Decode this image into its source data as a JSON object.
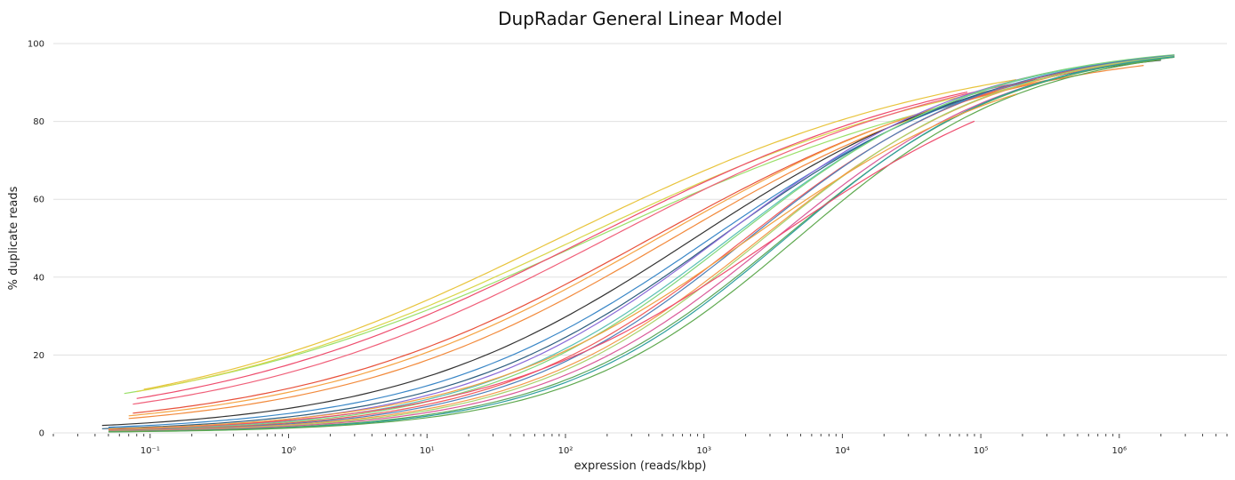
{
  "chart_data": {
    "type": "line",
    "title": "DupRadar General Linear Model",
    "xlabel": "expression (reads/kbp)",
    "ylabel": "% duplicate reads",
    "x_scale": "log",
    "xlim": [
      0.02,
      6000000
    ],
    "ylim": [
      0,
      100
    ],
    "x_ticks": [
      0.1,
      1,
      10,
      100,
      1000,
      10000,
      100000,
      1000000
    ],
    "x_tick_labels": [
      "10⁻¹",
      "10⁰",
      "10¹",
      "10²",
      "10³",
      "10⁴",
      "10⁵",
      "10⁶"
    ],
    "y_ticks": [
      0,
      20,
      40,
      60,
      80,
      100
    ],
    "y_tick_labels": [
      "0",
      "20",
      "40",
      "60",
      "80",
      "100"
    ],
    "grid": "horizontal",
    "legend": "none",
    "curve_model": "percent = 100 / (1 + exp(-(intercept + slope * ln(x))))",
    "series": [
      {
        "color": "#9be06a",
        "intercept": -1.42,
        "slope": 0.28,
        "x_range": [
          0.065,
          65000
        ]
      },
      {
        "color": "#e8c43c",
        "intercept": -1.35,
        "slope": 0.3,
        "x_range": [
          0.09,
          180000
        ]
      },
      {
        "color": "#d9d64a",
        "intercept": -1.4,
        "slope": 0.29,
        "x_range": [
          0.08,
          120000
        ]
      },
      {
        "color": "#ee4d6e",
        "intercept": -1.55,
        "slope": 0.31,
        "x_range": [
          0.08,
          80000
        ]
      },
      {
        "color": "#f0607a",
        "intercept": -1.7,
        "slope": 0.32,
        "x_range": [
          0.075,
          250000
        ]
      },
      {
        "color": "#e8503a",
        "intercept": -2.05,
        "slope": 0.34,
        "x_range": [
          0.075,
          400000
        ]
      },
      {
        "color": "#f5a443",
        "intercept": -2.15,
        "slope": 0.35,
        "x_range": [
          0.07,
          300000
        ]
      },
      {
        "color": "#f28a3c",
        "intercept": -2.3,
        "slope": 0.36,
        "x_range": [
          0.07,
          1500000
        ]
      },
      {
        "color": "#333333",
        "intercept": -2.7,
        "slope": 0.4,
        "x_range": [
          0.045,
          2000000
        ]
      },
      {
        "color": "#3a87c7",
        "intercept": -2.95,
        "slope": 0.42,
        "x_range": [
          0.05,
          2000000
        ]
      },
      {
        "color": "#2e5e7e",
        "intercept": -3.15,
        "slope": 0.44,
        "x_range": [
          0.045,
          2000000
        ]
      },
      {
        "color": "#8a6bd8",
        "intercept": -3.3,
        "slope": 0.46,
        "x_range": [
          0.05,
          2500000
        ]
      },
      {
        "color": "#5bc0b5",
        "intercept": -3.45,
        "slope": 0.47,
        "x_range": [
          0.05,
          2500000
        ]
      },
      {
        "color": "#7fd67a",
        "intercept": -3.55,
        "slope": 0.48,
        "x_range": [
          0.05,
          2500000
        ]
      },
      {
        "color": "#ef5b5b",
        "intercept": -3.65,
        "slope": 0.48,
        "x_range": [
          0.05,
          2500000
        ]
      },
      {
        "color": "#4e7fb8",
        "intercept": -3.75,
        "slope": 0.49,
        "x_range": [
          0.05,
          2500000
        ]
      },
      {
        "color": "#f39a4b",
        "intercept": -3.85,
        "slope": 0.49,
        "x_range": [
          0.05,
          2500000
        ]
      },
      {
        "color": "#a8d26b",
        "intercept": -3.95,
        "slope": 0.5,
        "x_range": [
          0.05,
          2500000
        ]
      },
      {
        "color": "#d95a9a",
        "intercept": -4.05,
        "slope": 0.5,
        "x_range": [
          0.05,
          2500000
        ]
      },
      {
        "color": "#5aa85a",
        "intercept": -4.2,
        "slope": 0.51,
        "x_range": [
          0.05,
          2500000
        ]
      },
      {
        "color": "#2e9e9e",
        "intercept": -4.3,
        "slope": 0.52,
        "x_range": [
          0.05,
          2500000
        ]
      },
      {
        "color": "#5fa94f",
        "intercept": -4.4,
        "slope": 0.52,
        "x_range": [
          0.05,
          2000000
        ]
      },
      {
        "color": "#ee4d6e",
        "intercept": -3.4,
        "slope": 0.42,
        "x_range": [
          0.05,
          90000
        ]
      },
      {
        "color": "#f0a040",
        "intercept": -3.3,
        "slope": 0.43,
        "x_range": [
          0.05,
          180000
        ]
      }
    ]
  }
}
